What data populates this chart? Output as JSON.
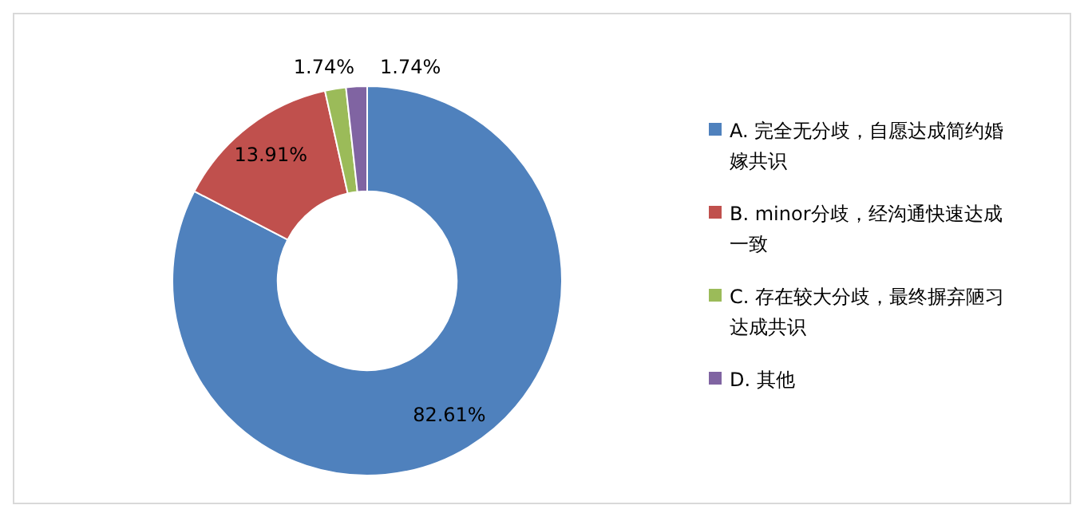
{
  "chart_data": {
    "type": "donut",
    "categories": [
      "A. 完全无分歧，自愿达成简约婚嫁共识",
      "B.  minor分歧，经沟通快速达成一致",
      "C. 存在较大分歧，最终摒弃陋习达成共识",
      "D. 其他"
    ],
    "values": [
      82.61,
      13.91,
      1.74,
      1.74
    ],
    "colors": [
      "#4f81bd",
      "#c0504d",
      "#9bbb59",
      "#8064a2"
    ],
    "value_labels": [
      "82.61%",
      "13.91%",
      "1.74%",
      "1.74%"
    ],
    "legend": "right"
  }
}
